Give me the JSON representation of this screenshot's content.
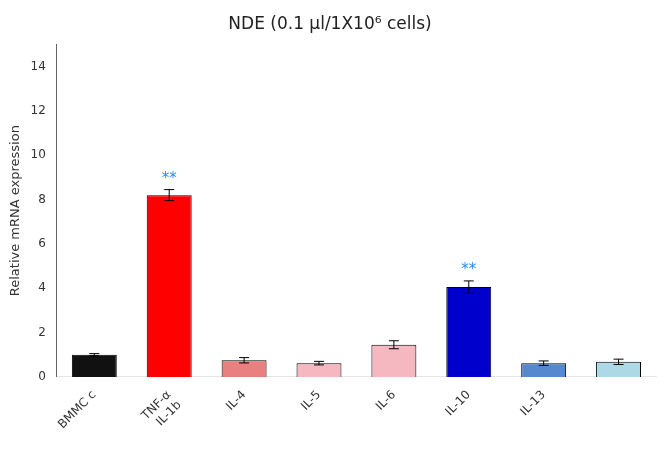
{
  "chart_data": {
    "type": "bar",
    "title": "NDE (0.1 μl/1X10⁶ cells)",
    "ylabel": "Relative mRNA expression",
    "categories": [
      "BMMC c",
      "TNF-α\nIL-1b",
      "IL-4",
      "IL-5",
      "IL-6",
      "IL-10",
      "IL-13",
      null
    ],
    "values": [
      1.0,
      8.2,
      0.75,
      0.62,
      1.45,
      4.05,
      0.62,
      0.68
    ],
    "errors": [
      0.05,
      0.25,
      0.12,
      0.08,
      0.18,
      0.28,
      0.1,
      0.12
    ],
    "colors": [
      "#111111",
      "#ff0000",
      "#e88080",
      "#f5b8c0",
      "#f5b8c0",
      "#0000cc",
      "#5588cc",
      "#add8e6"
    ],
    "annotations": [
      {
        "category": "TNF-α\nIL-1b",
        "text": "**",
        "color": "#1e90ff"
      },
      {
        "category": "IL-10",
        "text": "**",
        "color": "#1e90ff"
      }
    ],
    "ylim": [
      0,
      15
    ],
    "yticks": [
      0,
      2,
      4,
      6,
      8,
      10,
      12,
      14
    ],
    "grid": false
  }
}
